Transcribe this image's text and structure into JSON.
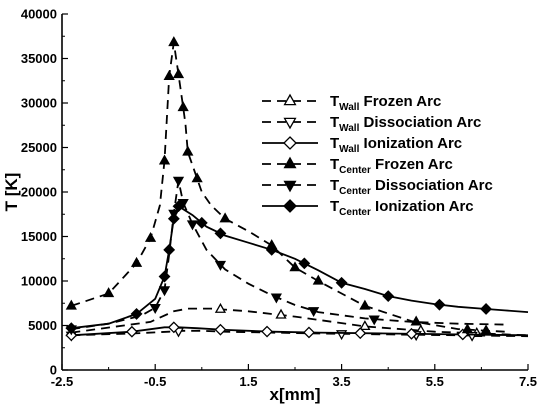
{
  "chart_data": {
    "type": "line",
    "title": "",
    "xlabel": "x[mm]",
    "ylabel": "T [K]",
    "xlim": [
      -2.5,
      7.5
    ],
    "ylim": [
      0,
      40000
    ],
    "x_ticks": [
      "-2.5",
      "-0.5",
      "1.5",
      "3.5",
      "5.5",
      "7.5"
    ],
    "y_ticks": [
      "0",
      "5000",
      "10000",
      "15000",
      "20000",
      "25000",
      "30000",
      "35000",
      "40000"
    ],
    "grid": false,
    "legend_position": "right",
    "colors": {
      "line": "#000000",
      "background": "#ffffff"
    },
    "series": [
      {
        "name": "T_Wall Frozen Arc",
        "label_main": "T",
        "label_sub": "Wall",
        "label_rest": " Frozen Arc",
        "marker": "triangle-up-open",
        "dash": "dashed",
        "x": [
          -2.3,
          -0.6,
          -0.1,
          0.2,
          0.7,
          1.5,
          2.5,
          4.0,
          5.5,
          7.5
        ],
        "y": [
          4200,
          5400,
          6600,
          6900,
          6900,
          6600,
          6000,
          4900,
          4300,
          3900
        ],
        "marker_x": [
          -2.3,
          0.9,
          2.2,
          4.0,
          5.2,
          6.4
        ]
      },
      {
        "name": "T_Wall Dissociation Arc",
        "label_main": "T",
        "label_sub": "Wall",
        "label_rest": " Dissociation Arc",
        "marker": "triangle-down-open",
        "dash": "dashed",
        "x": [
          -2.3,
          -1.0,
          -0.2,
          0.1,
          0.5,
          1.0,
          2.0,
          3.0,
          4.5,
          6.0,
          7.5
        ],
        "y": [
          3900,
          4100,
          4300,
          4400,
          4400,
          4300,
          4200,
          4100,
          4000,
          3900,
          3800
        ],
        "marker_x": [
          -2.3,
          0.0,
          3.5,
          5.1,
          6.3
        ]
      },
      {
        "name": "T_Wall Ionization Arc",
        "label_main": "T",
        "label_sub": "Wall",
        "label_rest": " Ionization Arc",
        "marker": "diamond-open",
        "dash": "solid",
        "x": [
          -2.3,
          -1.0,
          -0.3,
          0.0,
          0.4,
          1.0,
          2.0,
          3.0,
          4.5,
          6.0,
          7.5
        ],
        "y": [
          3900,
          4300,
          4800,
          4800,
          4700,
          4500,
          4300,
          4200,
          4100,
          4000,
          3900
        ],
        "marker_x": [
          -2.3,
          -1.0,
          -0.1,
          0.9,
          1.9,
          2.8,
          3.9,
          5.0,
          6.1
        ]
      },
      {
        "name": "T_Center Frozen Arc",
        "label_main": "T",
        "label_sub": "Center",
        "label_rest": " Frozen Arc",
        "marker": "triangle-up-filled",
        "dash": "dashed",
        "x": [
          -2.3,
          -1.5,
          -0.9,
          -0.6,
          -0.4,
          -0.3,
          -0.2,
          -0.1,
          0.0,
          0.1,
          0.15,
          0.2,
          0.3,
          0.5,
          0.7,
          1.0,
          1.5,
          2.0,
          2.5,
          3.0,
          3.5,
          4.0,
          5.0,
          6.0,
          7.0
        ],
        "y": [
          7200,
          8600,
          12000,
          14800,
          18500,
          23500,
          33000,
          36800,
          33200,
          29500,
          27600,
          24500,
          23000,
          20000,
          18500,
          17000,
          15600,
          14000,
          11500,
          10000,
          8600,
          7200,
          5500,
          4600,
          4300
        ],
        "marker_x": [
          -2.3,
          -1.5,
          -0.9,
          -0.6,
          -0.3,
          -0.2,
          -0.1,
          0.0,
          0.1,
          0.2,
          0.4,
          1.0,
          2.0,
          2.5,
          3.0,
          4.0,
          5.1,
          6.2,
          6.6
        ]
      },
      {
        "name": "T_Center Dissociation Arc",
        "label_main": "T",
        "label_sub": "Center",
        "label_rest": " Dissociation Arc",
        "marker": "triangle-down-filled",
        "dash": "dashed",
        "x": [
          -2.3,
          -1.5,
          -0.8,
          -0.5,
          -0.3,
          -0.2,
          -0.1,
          0.0,
          0.1,
          0.3,
          0.6,
          1.0,
          1.5,
          2.0,
          2.5,
          3.0,
          4.0,
          5.0,
          6.0,
          7.0
        ],
        "y": [
          4600,
          5200,
          6100,
          7000,
          9000,
          13000,
          17600,
          21300,
          18800,
          16400,
          13500,
          11300,
          9700,
          8400,
          7300,
          6500,
          5800,
          5400,
          5200,
          5100
        ],
        "marker_x": [
          -2.3,
          -0.5,
          -0.3,
          -0.1,
          0.0,
          0.1,
          0.3,
          0.9,
          2.1,
          2.9,
          4.2
        ]
      },
      {
        "name": "T_Center Ionization Arc",
        "label_main": "T",
        "label_sub": "Center",
        "label_rest": " Ionization Arc",
        "marker": "diamond-filled",
        "dash": "solid",
        "x": [
          -2.3,
          -1.5,
          -0.9,
          -0.5,
          -0.3,
          -0.2,
          -0.1,
          0.0,
          0.3,
          0.6,
          1.0,
          1.5,
          2.0,
          2.5,
          3.0,
          3.5,
          4.0,
          4.5,
          5.0,
          5.5,
          6.0,
          6.5,
          7.0,
          7.5
        ],
        "y": [
          4700,
          5200,
          6300,
          8000,
          10500,
          13500,
          17000,
          18400,
          17400,
          16100,
          15100,
          14300,
          13500,
          12500,
          11200,
          9800,
          9100,
          8300,
          7800,
          7400,
          7100,
          6900,
          6700,
          6500
        ],
        "marker_x": [
          -2.3,
          -0.9,
          -0.3,
          -0.2,
          -0.1,
          0.0,
          0.5,
          0.9,
          2.0,
          2.7,
          3.5,
          4.5,
          5.6,
          6.6
        ]
      }
    ]
  }
}
